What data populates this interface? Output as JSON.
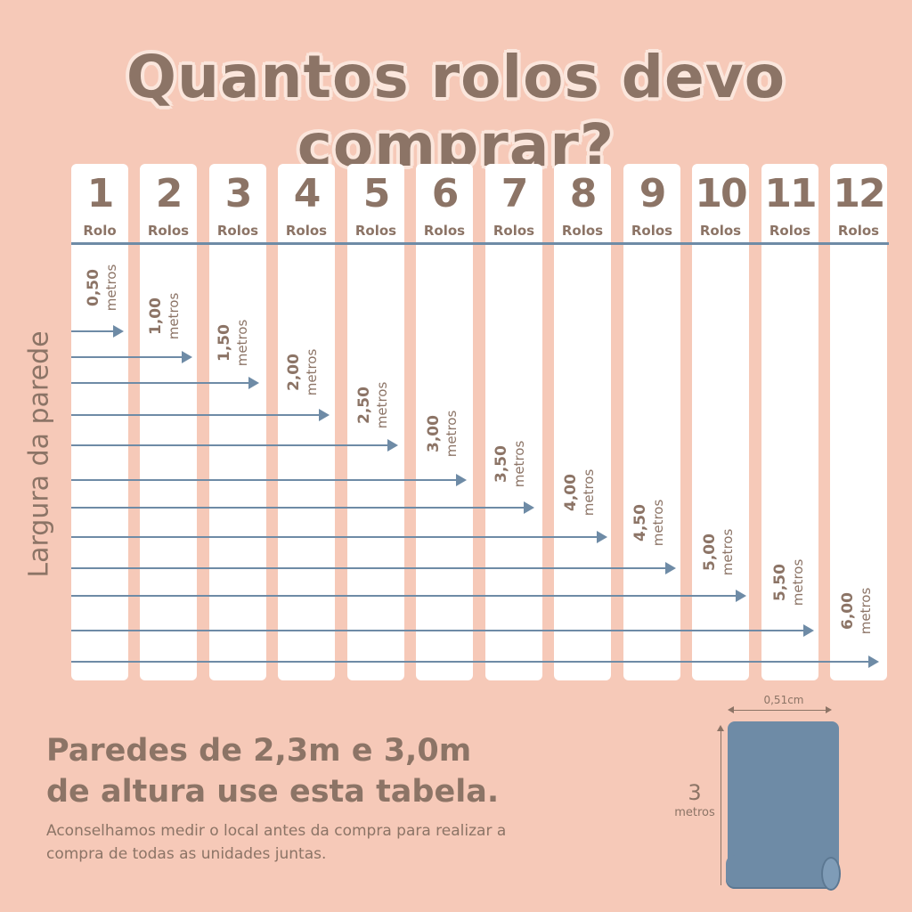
{
  "title": "Quantos rolos devo comprar?",
  "columns": [
    {
      "number": "1",
      "unit": "Rolo"
    },
    {
      "number": "2",
      "unit": "Rolos"
    },
    {
      "number": "3",
      "unit": "Rolos"
    },
    {
      "number": "4",
      "unit": "Rolos"
    },
    {
      "number": "5",
      "unit": "Rolos"
    },
    {
      "number": "6",
      "unit": "Rolos"
    },
    {
      "number": "7",
      "unit": "Rolos"
    },
    {
      "number": "8",
      "unit": "Rolos"
    },
    {
      "number": "9",
      "unit": "Rolos"
    },
    {
      "number": "10",
      "unit": "Rolos"
    },
    {
      "number": "11",
      "unit": "Rolos"
    },
    {
      "number": "12",
      "unit": "Rolos"
    }
  ],
  "side_label": "Largura da parede",
  "measurements": [
    {
      "value": "0,50",
      "unit": "metros"
    },
    {
      "value": "1,00",
      "unit": "metros"
    },
    {
      "value": "1,50",
      "unit": "metros"
    },
    {
      "value": "2,00",
      "unit": "metros"
    },
    {
      "value": "2,50",
      "unit": "metros"
    },
    {
      "value": "3,00",
      "unit": "metros"
    },
    {
      "value": "3,50",
      "unit": "metros"
    },
    {
      "value": "4,00",
      "unit": "metros"
    },
    {
      "value": "4,50",
      "unit": "metros"
    },
    {
      "value": "5,00",
      "unit": "metros"
    },
    {
      "value": "5,50",
      "unit": "metros"
    },
    {
      "value": "6,00",
      "unit": "metros"
    }
  ],
  "footer": {
    "title_line1": "Paredes de 2,3m e 3,0m",
    "title_line2": "de altura use esta tabela.",
    "note": "Aconselhamos medir o local antes da compra para realizar a compra de todas as unidades juntas."
  },
  "roll": {
    "width_label": "0,51cm",
    "height_value": "3",
    "height_unit": "metros"
  },
  "colors": {
    "background": "#f6c9b8",
    "text": "#8c7466",
    "accent": "#6e8ba6",
    "column": "#ffffff"
  }
}
